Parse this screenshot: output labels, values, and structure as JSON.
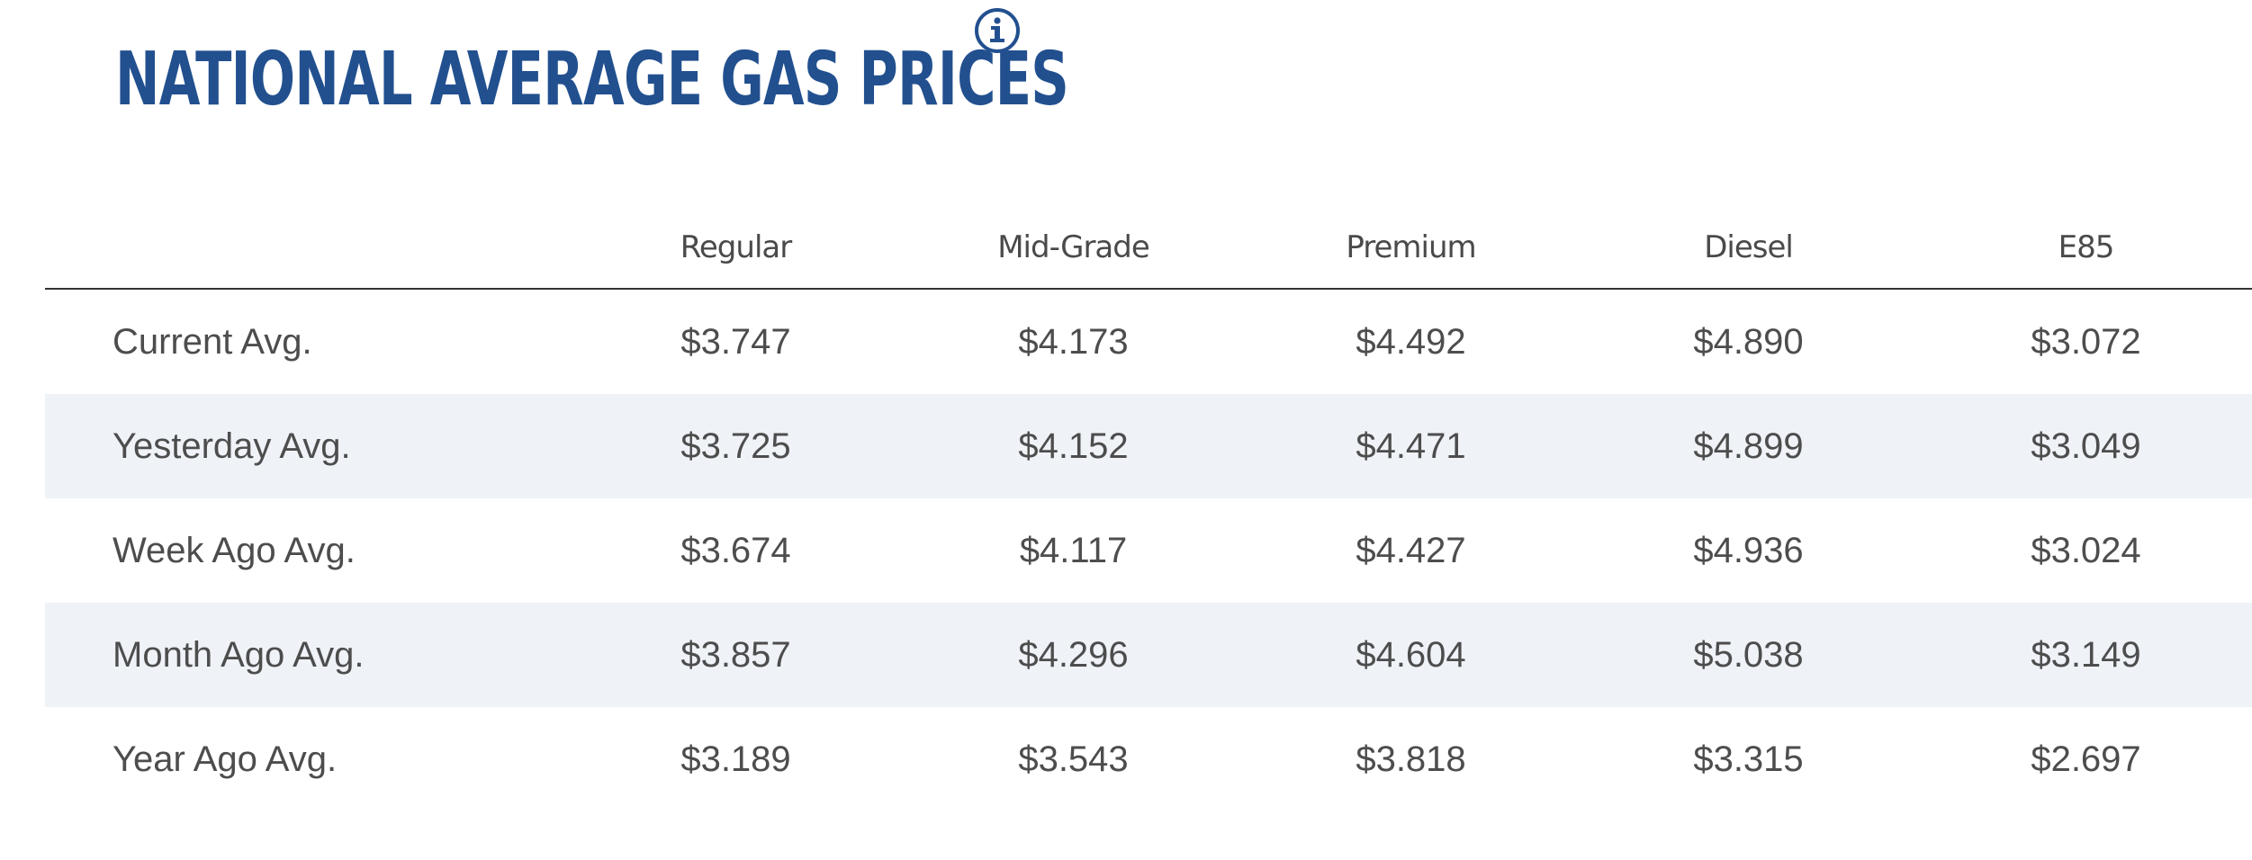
{
  "header": {
    "title": "NATIONAL AVERAGE GAS PRICES",
    "info_icon": "info-circle-icon",
    "title_color": "#22508f"
  },
  "table": {
    "columns": [
      "",
      "Regular",
      "Mid-Grade",
      "Premium",
      "Diesel",
      "E85"
    ],
    "rows": [
      {
        "label": "Current Avg.",
        "values": [
          "$3.747",
          "$4.173",
          "$4.492",
          "$4.890",
          "$3.072"
        ]
      },
      {
        "label": "Yesterday Avg.",
        "values": [
          "$3.725",
          "$4.152",
          "$4.471",
          "$4.899",
          "$3.049"
        ]
      },
      {
        "label": "Week Ago Avg.",
        "values": [
          "$3.674",
          "$4.117",
          "$4.427",
          "$4.936",
          "$3.024"
        ]
      },
      {
        "label": "Month Ago Avg.",
        "values": [
          "$3.857",
          "$4.296",
          "$4.604",
          "$5.038",
          "$3.149"
        ]
      },
      {
        "label": "Year Ago Avg.",
        "values": [
          "$3.189",
          "$3.543",
          "$3.818",
          "$3.315",
          "$2.697"
        ]
      }
    ],
    "stripe_color": "#eff3f8",
    "text_color": "#4d4d4d"
  }
}
